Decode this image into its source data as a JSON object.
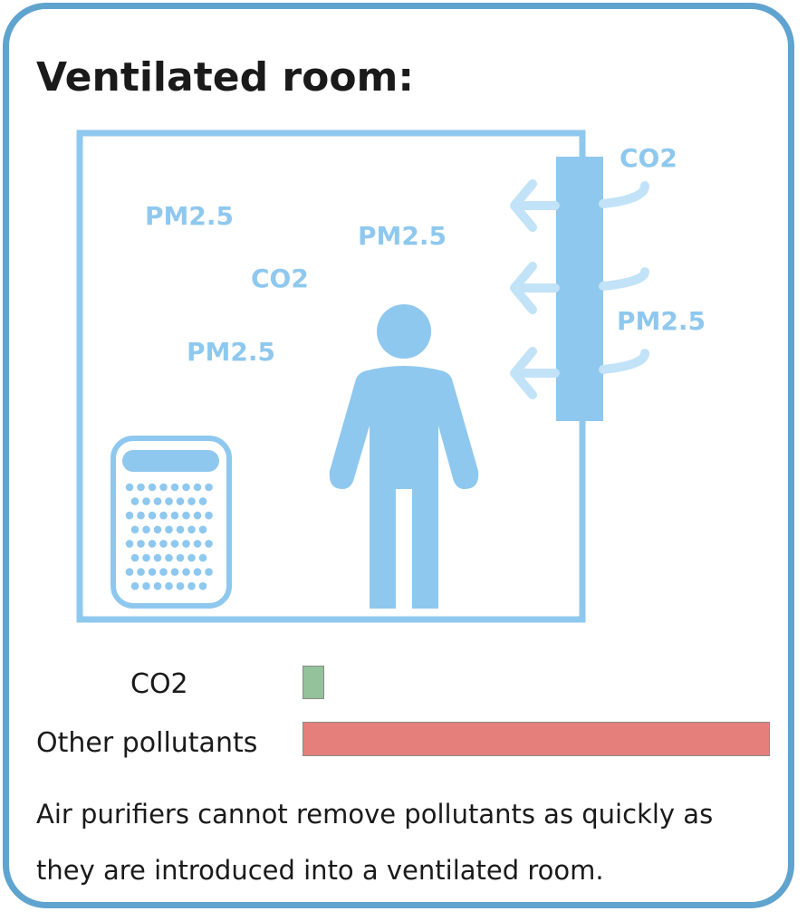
{
  "title": "Ventilated room:",
  "room": {
    "labels": {
      "pm25_a": "PM2.5",
      "pm25_b": "PM2.5",
      "co2_inside": "CO2",
      "pm25_c": "PM2.5",
      "co2_outside": "CO2",
      "pm25_outside": "PM2.5"
    }
  },
  "legend": {
    "co2_label": "CO2",
    "other_label": "Other pollutants",
    "co2_level": 0.046,
    "other_level": 1.0
  },
  "caption": "Air purifiers cannot remove pollutants as quickly as they are introduced into a ventilated room.",
  "colors": {
    "frame": "#5fa3cf",
    "room": "#8fc8ee",
    "arrow": "#c2e3f7",
    "co2_bar": "#94c29a",
    "other_bar": "#e57f7b"
  },
  "icons": [
    "air-purifier-icon",
    "person-icon",
    "window-vent-icon",
    "arrow-left-icon"
  ]
}
